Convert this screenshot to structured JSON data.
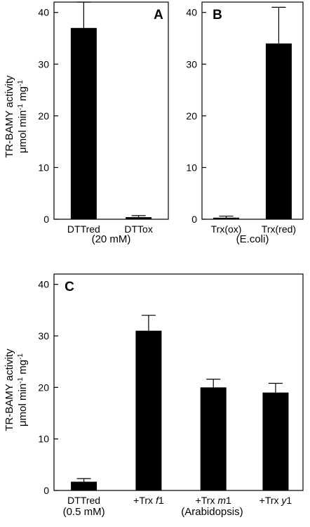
{
  "ylabel": {
    "line1": "TR-BAMY activity",
    "line2_prefix": "μmol min",
    "line2_exp1": "-1",
    "line2_mid": " mg",
    "line2_exp2": "-1"
  },
  "chart_data": [
    {
      "type": "bar",
      "panel": "A",
      "categories": [
        "DTTred",
        "DTTox"
      ],
      "values": [
        37.0,
        0.4
      ],
      "errors": [
        5.0,
        0.3
      ],
      "group_label": "(20 mM)",
      "ylim": [
        0,
        42
      ],
      "yticks": [
        0,
        10,
        20,
        30,
        40
      ],
      "ylabel": "TR-BAMY activity μmol min-1 mg-1",
      "grid": false
    },
    {
      "type": "bar",
      "panel": "B",
      "categories": [
        "Trx(ox)",
        "Trx(red)"
      ],
      "values": [
        0.3,
        34.0
      ],
      "errors": [
        0.3,
        7.0
      ],
      "group_label": "(E.coli)",
      "ylim": [
        0,
        42
      ],
      "yticks": [
        0,
        10,
        20,
        30,
        40
      ],
      "grid": false
    },
    {
      "type": "bar",
      "panel": "C",
      "categories": [
        "DTTred",
        "+Trx f1",
        "+Trx m1",
        "+Trx y1"
      ],
      "category_parts": [
        {
          "pre": "DTTred",
          "ital": "",
          "post": ""
        },
        {
          "pre": "+Trx ",
          "ital": "f",
          "post": "1"
        },
        {
          "pre": "+Trx ",
          "ital": "m",
          "post": "1"
        },
        {
          "pre": "+Trx  ",
          "ital": "y",
          "post": "1"
        }
      ],
      "values": [
        1.7,
        31.0,
        20.0,
        19.0
      ],
      "errors": [
        0.6,
        3.0,
        1.6,
        1.8
      ],
      "group_labels": [
        "(0.5 mM)",
        "(Arabidopsis)"
      ],
      "ylim": [
        0,
        42
      ],
      "yticks": [
        0,
        10,
        20,
        30,
        40
      ],
      "ylabel": "TR-BAMY activity μmol min-1 mg-1",
      "grid": false
    }
  ]
}
